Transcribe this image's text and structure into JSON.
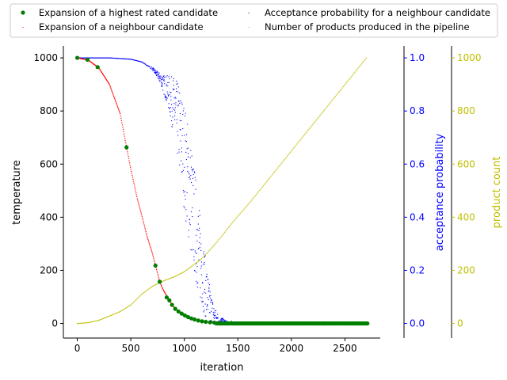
{
  "chart_data": {
    "type": "scatter",
    "xlabel": "iteration",
    "xlim": [
      -130,
      2830
    ],
    "xticks": [
      0,
      500,
      1000,
      1500,
      2000,
      2500
    ],
    "legend_placement": "top, above plot (two columns)",
    "axes": {
      "left": {
        "label": "temperature",
        "color": "#000000",
        "ylim": [
          -55,
          1045
        ],
        "ticks": [
          0,
          200,
          400,
          600,
          800,
          1000
        ],
        "tick_labels": [
          "0",
          "200",
          "400",
          "600",
          "800",
          "1000"
        ]
      },
      "right_inner": {
        "label": "acceptance probability",
        "color": "#0000ff",
        "ylim": [
          -0.055,
          1.045
        ],
        "ticks": [
          0.0,
          0.2,
          0.4,
          0.6,
          0.8,
          1.0
        ],
        "tick_labels": [
          "0.0",
          "0.2",
          "0.4",
          "0.6",
          "0.8",
          "1.0"
        ]
      },
      "right_outer": {
        "label": "product count",
        "color": "#bfbf00",
        "ylim": [
          -55,
          1045
        ],
        "ticks": [
          0,
          200,
          400,
          600,
          800,
          1000
        ],
        "tick_labels": [
          "0",
          "200",
          "400",
          "600",
          "800",
          "1000"
        ]
      }
    },
    "series": [
      {
        "name": "Expansion of a highest rated candidate",
        "axis": "left",
        "color": "#007f00",
        "marker": "dot",
        "x": [
          0,
          95,
          190,
          460,
          730,
          770,
          835,
          860,
          885,
          915,
          945,
          975,
          1005,
          1035,
          1065,
          1095,
          1130,
          1165,
          1200,
          1240,
          1280,
          1330,
          1400,
          1500,
          1600,
          1700,
          1800,
          1900,
          2000,
          2100,
          2200,
          2300,
          2400,
          2500,
          2600,
          2710
        ],
        "y": [
          1000,
          993,
          965,
          663,
          218,
          157,
          98,
          87,
          70,
          55,
          45,
          37,
          30,
          24,
          19,
          15,
          11,
          8,
          6,
          4,
          3,
          2,
          1,
          0,
          0,
          0,
          0,
          0,
          0,
          0,
          0,
          0,
          0,
          0,
          0,
          0
        ]
      },
      {
        "name": "Expansion of a neighbour candidate",
        "axis": "left",
        "color": "#ff0000",
        "marker": "point",
        "curve": [
          [
            0,
            1000
          ],
          [
            100,
            992
          ],
          [
            200,
            963
          ],
          [
            300,
            900
          ],
          [
            400,
            790
          ],
          [
            460,
            663
          ],
          [
            500,
            580
          ],
          [
            560,
            470
          ],
          [
            600,
            410
          ],
          [
            650,
            330
          ],
          [
            700,
            265
          ],
          [
            730,
            218
          ],
          [
            770,
            157
          ],
          [
            800,
            128
          ],
          [
            850,
            93
          ],
          [
            900,
            62
          ],
          [
            950,
            43
          ],
          [
            1000,
            30
          ],
          [
            1050,
            21
          ],
          [
            1100,
            14
          ],
          [
            1150,
            9
          ],
          [
            1200,
            6
          ],
          [
            1250,
            4
          ],
          [
            1300,
            2
          ],
          [
            1400,
            1
          ],
          [
            1500,
            0
          ],
          [
            2710,
            0
          ]
        ]
      },
      {
        "name": "Acceptance probability for a neighbour candidate",
        "axis": "right_inner",
        "color": "#0000ff",
        "marker": "pixel",
        "curve": [
          [
            0,
            1.0
          ],
          [
            300,
            1.0
          ],
          [
            500,
            0.995
          ],
          [
            600,
            0.985
          ],
          [
            700,
            0.96
          ],
          [
            780,
            0.92
          ],
          [
            850,
            0.87
          ],
          [
            900,
            0.82
          ],
          [
            950,
            0.74
          ],
          [
            1000,
            0.63
          ],
          [
            1050,
            0.5
          ],
          [
            1100,
            0.37
          ],
          [
            1150,
            0.24
          ],
          [
            1200,
            0.13
          ],
          [
            1250,
            0.05
          ],
          [
            1300,
            0.015
          ],
          [
            1400,
            0.003
          ],
          [
            1500,
            0.0
          ],
          [
            2710,
            0.0
          ]
        ]
      },
      {
        "name": "Number of products produced in the pipeline",
        "axis": "right_outer",
        "color": "#bfbf00",
        "marker": "pixel",
        "curve": [
          [
            0,
            0
          ],
          [
            100,
            3
          ],
          [
            200,
            12
          ],
          [
            250,
            20
          ],
          [
            300,
            28
          ],
          [
            400,
            45
          ],
          [
            500,
            70
          ],
          [
            550,
            90
          ],
          [
            600,
            110
          ],
          [
            700,
            140
          ],
          [
            800,
            160
          ],
          [
            900,
            175
          ],
          [
            1000,
            195
          ],
          [
            1100,
            225
          ],
          [
            1150,
            240
          ],
          [
            1200,
            260
          ],
          [
            1300,
            305
          ],
          [
            1400,
            355
          ],
          [
            1500,
            405
          ],
          [
            1600,
            450
          ],
          [
            1700,
            500
          ],
          [
            1800,
            550
          ],
          [
            1900,
            600
          ],
          [
            2000,
            650
          ],
          [
            2100,
            700
          ],
          [
            2200,
            750
          ],
          [
            2300,
            800
          ],
          [
            2400,
            850
          ],
          [
            2500,
            900
          ],
          [
            2600,
            950
          ],
          [
            2700,
            1000
          ]
        ]
      }
    ]
  }
}
